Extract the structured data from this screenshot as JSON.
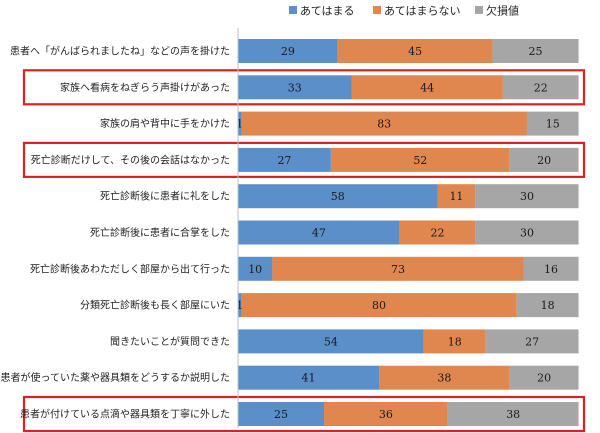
{
  "chart_data": {
    "type": "bar",
    "orientation": "horizontal",
    "stacked": true,
    "xlim": [
      0,
      100
    ],
    "grid": false,
    "legend_position": "top",
    "categories": [
      "患者へ「がんばられましたね」などの声を掛けた",
      "家族へ看病をねぎらう声掛けがあった",
      "家族の肩や背中に手をかけた",
      "死亡診断だけして、その後の会話はなかった",
      "死亡診断後に患者に礼をした",
      "死亡診断後に患者に合掌をした",
      "死亡診断後あわただしく部屋から出て行った",
      "分類死亡診断後も長く部屋にいた",
      "聞きたいことが質問できた",
      "患者が使っていた薬や器具類をどうするか説明した",
      "患者が付けている点滴や器具類を丁寧に外した"
    ],
    "series": [
      {
        "name": "あてはまる",
        "color": "#5b8fc9",
        "values": [
          29,
          33,
          1,
          27,
          58,
          47,
          10,
          1,
          54,
          41,
          25
        ]
      },
      {
        "name": "あてはまらない",
        "color": "#e0874f",
        "values": [
          45,
          44,
          83,
          52,
          11,
          22,
          73,
          80,
          18,
          38,
          36
        ]
      },
      {
        "name": "欠損値",
        "color": "#a6a6a6",
        "values": [
          25,
          22,
          15,
          20,
          30,
          30,
          16,
          18,
          27,
          20,
          38
        ]
      }
    ],
    "highlighted_categories": [
      1,
      3,
      10
    ],
    "highlight_color": "#e02020"
  }
}
